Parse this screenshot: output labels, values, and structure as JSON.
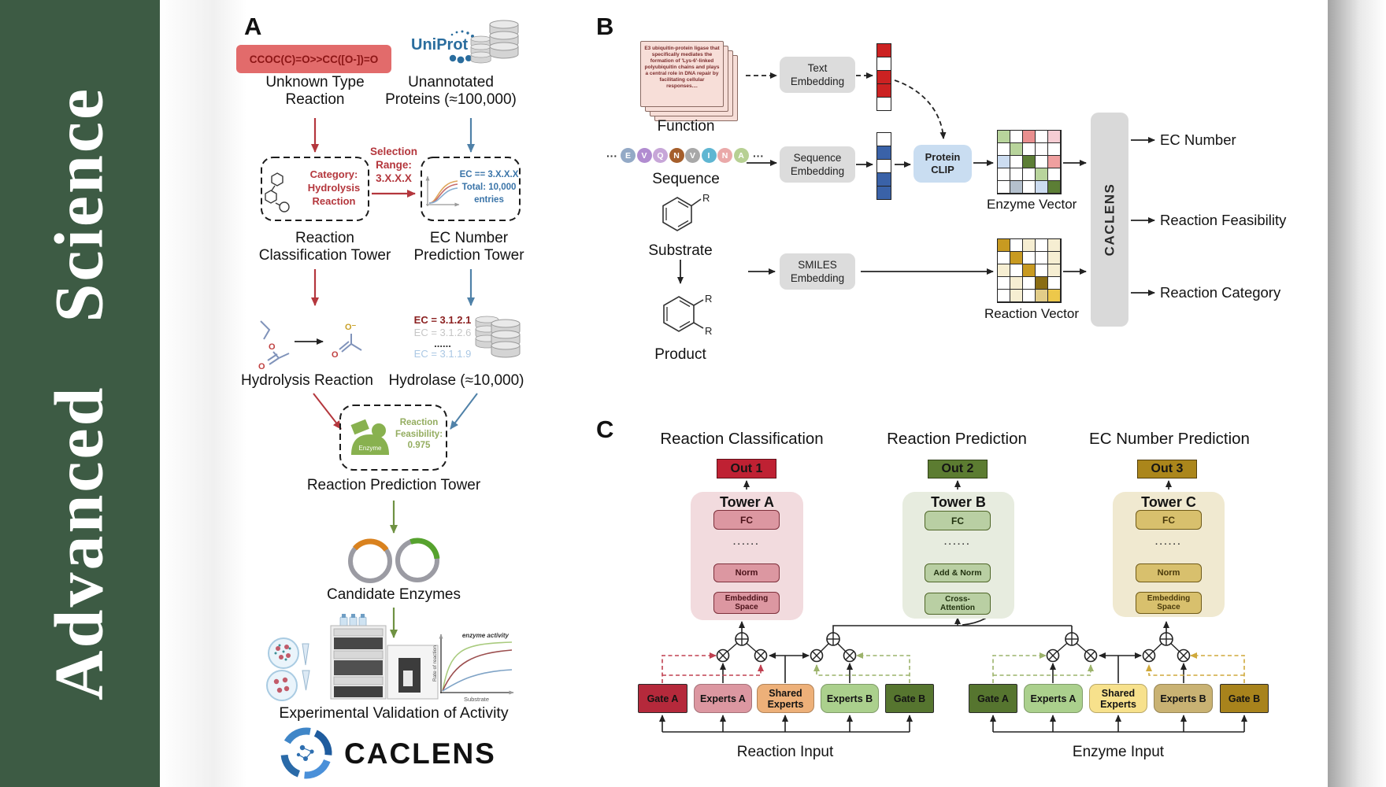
{
  "journal": {
    "title": "Advanced Science",
    "bg": "#3d5b44"
  },
  "panelA": {
    "label": "A",
    "smiles": "CCOC(C)=O>>CC([O-])=O",
    "unknown1": "Unknown Type",
    "unknown2": "Reaction",
    "uniprot": "UniProt",
    "unannotated1": "Unannotated",
    "unannotated2": "Proteins (≈100,000)",
    "selection1": "Selection",
    "selection2": "Range:",
    "selection3": "3.X.X.X",
    "category1": "Category:",
    "category2": "Hydrolysis",
    "category3": "Reaction",
    "ecbox1": "EC == 3.X.X.X",
    "ecbox2": "Total: 10,000",
    "ecbox3": "entries",
    "tower1a": "Reaction",
    "tower1b": "Classification Tower",
    "tower2a": "EC Number",
    "tower2b": "Prediction Tower",
    "ec_list": {
      "e1": "EC = 3.1.2.1",
      "e2": "EC = 3.1.2.6",
      "dots": "......",
      "e3": "EC = 3.1.1.9"
    },
    "hydrolysis": "Hydrolysis Reaction",
    "hydrolase": "Hydrolase (≈10,000)",
    "enzyme_badge": "Enzyme",
    "feas1": "Reaction",
    "feas2": "Feasibility:",
    "feas3": "0.975",
    "rpt": "Reaction Prediction Tower",
    "candidate": "Candidate Enzymes",
    "expval": "Experimental Validation of Activity",
    "brand": "CACLENS",
    "miniplot": {
      "curve": "enzyme activity",
      "y": "Rate of reaction",
      "x": "Substrate"
    }
  },
  "panelB": {
    "label": "B",
    "function_text": "E3 ubiquitin-protein ligase that specifically mediates the formation of 'Lys-6'-linked polyubiquitin chains and plays a central role in DNA repair by facilitating cellular responses....",
    "function": "Function",
    "sequence": "Sequence",
    "substrate": "Substrate",
    "product": "Product",
    "r": "R",
    "ellipsis": "···",
    "seq_letters": [
      {
        "t": "E",
        "c": "#93a9c6"
      },
      {
        "t": "V",
        "c": "#b18cd0"
      },
      {
        "t": "Q",
        "c": "#c7a6d8"
      },
      {
        "t": "N",
        "c": "#a55e2b"
      },
      {
        "t": "V",
        "c": "#a8a8a8"
      },
      {
        "t": "I",
        "c": "#5fb6d2"
      },
      {
        "t": "N",
        "c": "#eaa9a9"
      },
      {
        "t": "A",
        "c": "#b7d093"
      }
    ],
    "text_embedding": "Text Embedding",
    "sequence_embedding": "Sequence Embedding",
    "smiles_embedding": "SMILES Embedding",
    "protein_clip": "Protein CLIP",
    "text_vector": [
      "#cc2222",
      "#ffffff",
      "#cc2222",
      "#cc2222",
      "#ffffff"
    ],
    "seq_vector": [
      "#ffffff",
      "#3a62a8",
      "#ffffff",
      "#3a62a8",
      "#3a62a8"
    ],
    "enzyme_vector_label": "Enzyme Vector",
    "reaction_vector_label": "Reaction Vector",
    "enzyme_vector": [
      [
        "#b8d49c",
        "#ffffff",
        "#e98f8f",
        "#ffffff",
        "#f6cdd3"
      ],
      [
        "#ffffff",
        "#b8d49c",
        "#ffffff",
        "#ffffff",
        "#ffffff"
      ],
      [
        "#ccdcf0",
        "#ffffff",
        "#5c7e35",
        "#ffffff",
        "#ef9f9f"
      ],
      [
        "#ffffff",
        "#ffffff",
        "#ffffff",
        "#b8d49c",
        "#ffffff"
      ],
      [
        "#ffffff",
        "#b4c0cd",
        "#ff ffff",
        "#ccdcf0",
        "#5c7e35"
      ]
    ],
    "reaction_vector": [
      [
        "#c89a21",
        "#ffffff",
        "#f6eed2",
        "#ffffff",
        "#f6eed2"
      ],
      [
        "#ffffff",
        "#c89a21",
        "#ffffff",
        "#ffffff",
        "#f6eed2"
      ],
      [
        "#f6eed2",
        "#ffffff",
        "#c89a21",
        "#ffffff",
        "#f6eed2"
      ],
      [
        "#ffffff",
        "#f6eed2",
        "#ffffff",
        "#8a6d14",
        "#ffffff"
      ],
      [
        "#ffffff",
        "#f6eed2",
        "#ffffff",
        "#e2cd89",
        "#edc84a"
      ]
    ],
    "caclens": "CACLENS",
    "out_ec": "EC Number",
    "out_feas": "Reaction Feasibility",
    "out_cat": "Reaction Category"
  },
  "panelC": {
    "label": "C",
    "h1": "Reaction Classification",
    "h2": "Reaction Prediction",
    "h3": "EC Number Prediction",
    "out1": "Out 1",
    "out2": "Out 2",
    "out3": "Out 3",
    "towerA": {
      "title": "Tower A",
      "fc": "FC",
      "dots": "······",
      "norm": "Norm",
      "emb": "Embedding Space"
    },
    "towerB": {
      "title": "Tower B",
      "fc": "FC",
      "dots": "······",
      "addnorm": "Add & Norm",
      "cross": "Cross-Attention"
    },
    "towerC": {
      "title": "Tower C",
      "fc": "FC",
      "dots": "······",
      "norm": "Norm",
      "emb": "Embedding Space"
    },
    "moe1": {
      "gateA": "Gate A",
      "expertsA": "Experts A",
      "shared": "Shared Experts",
      "expertsB": "Experts B",
      "gateB": "Gate B",
      "input": "Reaction Input"
    },
    "moe2": {
      "gateA": "Gate A",
      "expertsA": "Experts A",
      "shared": "Shared Experts",
      "expertsB": "Experts B",
      "gateB": "Gate B",
      "input": "Enzyme Input"
    }
  }
}
